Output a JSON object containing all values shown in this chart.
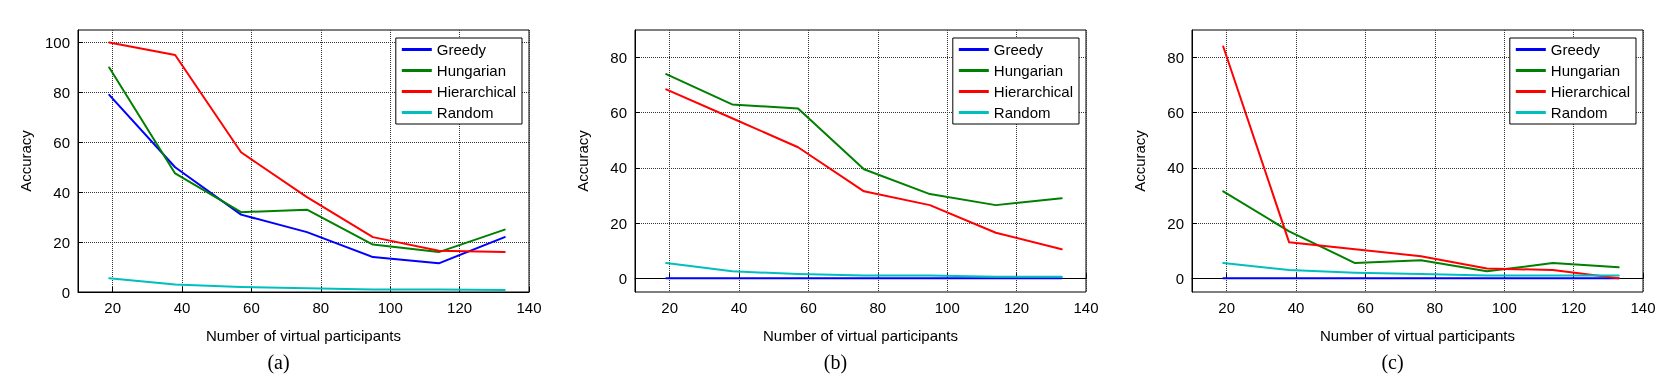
{
  "chart_data": [
    {
      "type": "line",
      "xlabel": "Number of virtual participants",
      "ylabel": "Accuracy",
      "annotations": [
        "(a)"
      ],
      "x": [
        19,
        38,
        57,
        76,
        95,
        114,
        133
      ],
      "xlim": [
        10,
        140
      ],
      "xticks": [
        20,
        40,
        60,
        80,
        100,
        120,
        140
      ],
      "ylim": [
        0,
        105
      ],
      "yticks": [
        0,
        20,
        40,
        60,
        80,
        100
      ],
      "grid": true,
      "legend": "top right",
      "marker": "none",
      "line_style": "solid",
      "series": [
        {
          "name": "Greedy",
          "color": "#0000ff",
          "values": [
            79,
            50,
            31,
            24,
            14,
            11.5,
            22
          ]
        },
        {
          "name": "Hungarian",
          "color": "#008000",
          "values": [
            90,
            47.5,
            32,
            33,
            19,
            16,
            25
          ]
        },
        {
          "name": "Hierarchical",
          "color": "#ff0000",
          "values": [
            100,
            95,
            56,
            38,
            22,
            16.5,
            16
          ]
        },
        {
          "name": "Random",
          "color": "#00bfbf",
          "values": [
            5.5,
            3,
            2,
            1.5,
            1,
            1,
            0.8
          ]
        }
      ]
    },
    {
      "type": "line",
      "xlabel": "Number of virtual participants",
      "ylabel": "Accuracy",
      "annotations": [
        "(b)"
      ],
      "x": [
        19,
        38,
        57,
        76,
        95,
        114,
        133
      ],
      "xlim": [
        10,
        140
      ],
      "xticks": [
        20,
        40,
        60,
        80,
        100,
        120,
        140
      ],
      "ylim": [
        -5,
        90
      ],
      "yticks": [
        0,
        20,
        40,
        60,
        80
      ],
      "grid": true,
      "legend": "top right",
      "marker": "none",
      "line_style": "solid",
      "series": [
        {
          "name": "Greedy",
          "color": "#0000ff",
          "values": [
            0,
            0,
            0,
            0,
            0,
            0,
            0
          ]
        },
        {
          "name": "Hungarian",
          "color": "#008000",
          "values": [
            74,
            63,
            61.5,
            39.5,
            30.5,
            26.5,
            29
          ]
        },
        {
          "name": "Hierarchical",
          "color": "#ff0000",
          "values": [
            68.5,
            58,
            47.5,
            31.5,
            26.5,
            16.5,
            10.5
          ]
        },
        {
          "name": "Random",
          "color": "#00bfbf",
          "values": [
            5.5,
            2.5,
            1.5,
            1,
            1,
            0.5,
            0.5
          ]
        }
      ]
    },
    {
      "type": "line",
      "xlabel": "Number of virtual participants",
      "ylabel": "Accuracy",
      "annotations": [
        "(c)"
      ],
      "x": [
        19,
        38,
        57,
        76,
        95,
        114,
        133
      ],
      "xlim": [
        10,
        140
      ],
      "xticks": [
        20,
        40,
        60,
        80,
        100,
        120,
        140
      ],
      "ylim": [
        -5,
        90
      ],
      "yticks": [
        0,
        20,
        40,
        60,
        80
      ],
      "grid": true,
      "legend": "top right",
      "marker": "none",
      "line_style": "solid",
      "series": [
        {
          "name": "Greedy",
          "color": "#0000ff",
          "values": [
            0,
            0,
            0,
            0,
            0,
            0,
            0
          ]
        },
        {
          "name": "Hungarian",
          "color": "#008000",
          "values": [
            31.5,
            17,
            5.5,
            6.5,
            2.5,
            5.5,
            4
          ]
        },
        {
          "name": "Hierarchical",
          "color": "#ff0000",
          "values": [
            84,
            13,
            10.5,
            8,
            3.5,
            3,
            0
          ]
        },
        {
          "name": "Random",
          "color": "#00bfbf",
          "values": [
            5.5,
            3,
            2,
            1.5,
            1,
            1,
            1
          ]
        }
      ]
    }
  ]
}
